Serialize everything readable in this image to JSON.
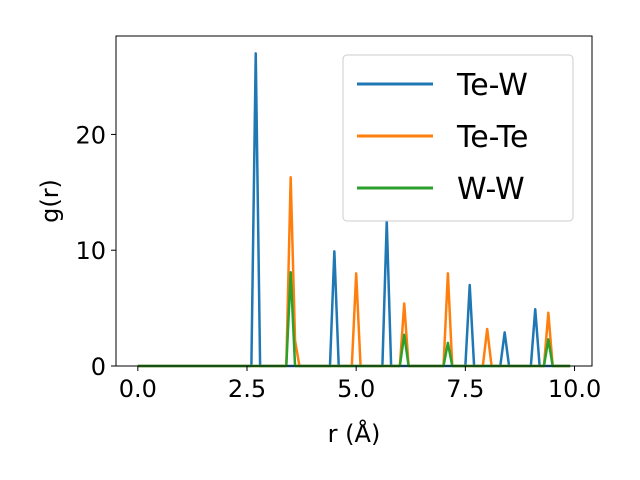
{
  "chart_data": {
    "type": "line",
    "title": "",
    "xlabel": "r (Å)",
    "ylabel": "g(r)",
    "xlim": [
      -0.5,
      10.4
    ],
    "ylim": [
      0,
      28.5
    ],
    "xticks": [
      0.0,
      2.5,
      5.0,
      7.5,
      10.0
    ],
    "xtick_labels": [
      "0.0",
      "2.5",
      "5.0",
      "7.5",
      "10.0"
    ],
    "yticks": [
      0,
      10,
      20
    ],
    "ytick_labels": [
      "0",
      "10",
      "20"
    ],
    "grid": false,
    "legend_position": "top-right",
    "series": [
      {
        "name": "Te-W",
        "color": "#1f77b4",
        "x": [
          0.0,
          2.6,
          2.7,
          2.8,
          4.4,
          4.5,
          4.6,
          5.6,
          5.7,
          5.8,
          7.5,
          7.6,
          7.7,
          8.3,
          8.4,
          8.5,
          9.0,
          9.1,
          9.2,
          9.9
        ],
        "y": [
          0,
          0,
          27.0,
          0,
          0,
          9.9,
          0,
          0,
          12.5,
          0,
          0,
          7.0,
          0,
          0,
          2.9,
          0,
          0,
          4.9,
          0,
          0
        ]
      },
      {
        "name": "Te-Te",
        "color": "#ff7f0e",
        "x": [
          0.0,
          3.4,
          3.5,
          3.6,
          3.7,
          4.9,
          5.0,
          5.1,
          6.0,
          6.1,
          6.2,
          7.0,
          7.1,
          7.2,
          7.9,
          8.0,
          8.1,
          9.3,
          9.4,
          9.5,
          9.9
        ],
        "y": [
          0,
          0,
          16.3,
          2.2,
          0,
          0,
          8.0,
          0,
          0,
          5.4,
          0,
          0,
          8.0,
          0,
          0,
          3.2,
          0,
          0,
          4.6,
          0,
          0
        ]
      },
      {
        "name": "W-W",
        "color": "#2ca02c",
        "x": [
          0.0,
          3.4,
          3.5,
          3.6,
          6.0,
          6.1,
          6.2,
          7.0,
          7.1,
          7.2,
          9.3,
          9.4,
          9.5,
          9.9
        ],
        "y": [
          0,
          0,
          8.1,
          0,
          0,
          2.7,
          0,
          0,
          2.0,
          0,
          0,
          2.3,
          0,
          0
        ]
      }
    ]
  }
}
